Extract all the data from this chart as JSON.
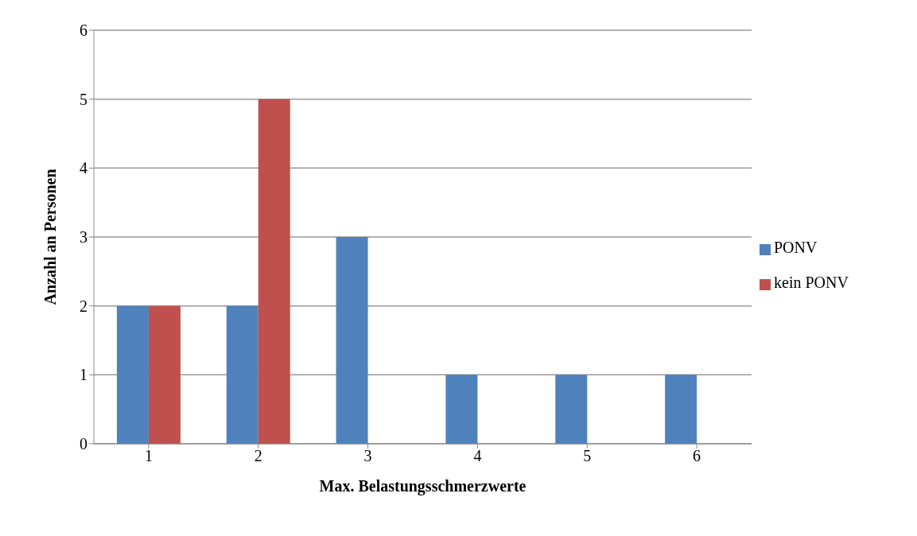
{
  "chart_data": {
    "type": "bar",
    "xlabel": "Max. Belastungsschmerzwerte",
    "ylabel": "Anzahl an Personen",
    "categories": [
      "1",
      "2",
      "3",
      "4",
      "5",
      "6"
    ],
    "series": [
      {
        "name": "PONV",
        "color": "#4f81bd",
        "values": [
          2,
          2,
          3,
          1,
          1,
          1
        ]
      },
      {
        "name": "kein PONV",
        "color": "#c0504d",
        "values": [
          2,
          5,
          0,
          0,
          0,
          0
        ]
      }
    ],
    "ylim": [
      0,
      6
    ],
    "yticks": [
      0,
      1,
      2,
      3,
      4,
      5,
      6
    ],
    "grid": "y",
    "legend": "right"
  }
}
